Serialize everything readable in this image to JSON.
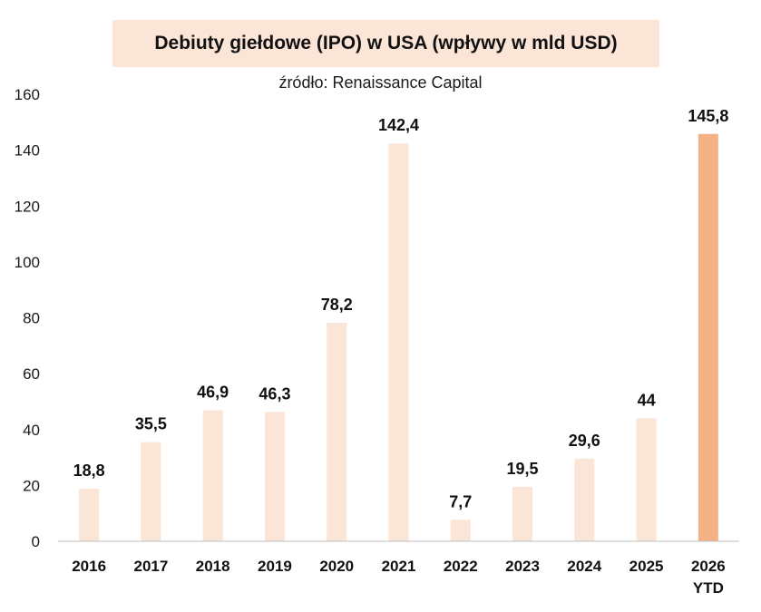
{
  "chart_data": {
    "type": "bar",
    "title": "Debiuty giełdowe (IPO) w USA (wpływy w mld USD)",
    "subtitle": "źródło: Renaissance Capital",
    "categories": [
      "2016",
      "2017",
      "2018",
      "2019",
      "2020",
      "2021",
      "2022",
      "2023",
      "2024",
      "2025",
      "2026\nYTD"
    ],
    "values": [
      18.8,
      35.5,
      46.9,
      46.3,
      78.2,
      142.4,
      7.7,
      19.5,
      29.6,
      44,
      145.8
    ],
    "data_labels": [
      "18,8",
      "35,5",
      "46,9",
      "46,3",
      "78,2",
      "142,4",
      "7,7",
      "19,5",
      "29,6",
      "44",
      "145,8"
    ],
    "ylim": [
      0,
      160
    ],
    "yticks": [
      "0",
      "20",
      "40",
      "60",
      "80",
      "100",
      "120",
      "140",
      "160"
    ],
    "xlabel": "",
    "ylabel": "",
    "grid": false,
    "colors": {
      "bar": "#fbe5d6",
      "highlight_bar": "#f4b183",
      "title_background": "#fbe5d6",
      "axis": "#bfbfbf"
    },
    "highlight_index": 10
  }
}
